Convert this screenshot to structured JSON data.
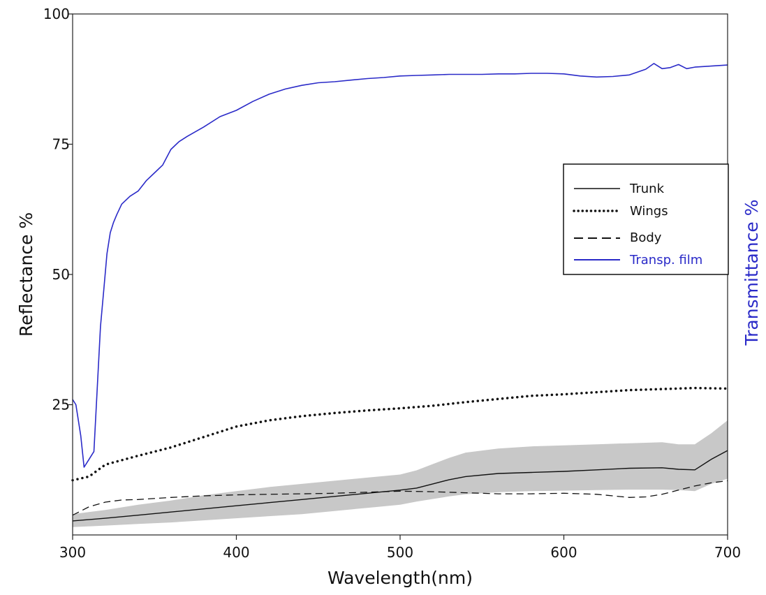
{
  "chart_data": {
    "type": "line",
    "xlabel": "Wavelength(nm)",
    "ylabel": "Reflectance %",
    "ylabel_right": "Transmittance %",
    "xlim": [
      300,
      700
    ],
    "ylim": [
      0,
      100
    ],
    "x_ticks": [
      "300",
      "400",
      "500",
      "600",
      "700"
    ],
    "y_ticks": [
      "25",
      "50",
      "75",
      "100"
    ],
    "grid": false,
    "legend_position": "right",
    "colors": {
      "black": "#111111",
      "transmittance": "#2a2ac8",
      "band": "#c8c8c8"
    },
    "series": [
      {
        "name": "Trunk",
        "style": "solid",
        "x": [
          300,
          320,
          340,
          360,
          380,
          400,
          420,
          440,
          460,
          480,
          500,
          510,
          520,
          530,
          540,
          560,
          580,
          600,
          620,
          640,
          660,
          670,
          680,
          690,
          700
        ],
        "values": [
          2.7,
          3.2,
          3.8,
          4.4,
          5.0,
          5.6,
          6.2,
          6.8,
          7.4,
          8.0,
          8.6,
          9.0,
          9.8,
          10.6,
          11.2,
          11.8,
          12.0,
          12.2,
          12.5,
          12.8,
          12.9,
          12.6,
          12.5,
          14.5,
          16.2
        ],
        "band_upper": [
          4.0,
          4.8,
          5.8,
          6.6,
          7.6,
          8.4,
          9.2,
          9.8,
          10.4,
          11.0,
          11.6,
          12.4,
          13.6,
          14.8,
          15.8,
          16.6,
          17.0,
          17.2,
          17.4,
          17.6,
          17.8,
          17.4,
          17.4,
          19.5,
          22.0
        ],
        "band_lower": [
          1.5,
          1.8,
          2.1,
          2.4,
          2.8,
          3.2,
          3.6,
          4.0,
          4.6,
          5.2,
          5.8,
          6.4,
          6.9,
          7.4,
          7.8,
          8.2,
          8.4,
          8.5,
          8.6,
          8.7,
          8.7,
          8.6,
          8.4,
          9.8,
          10.8
        ]
      },
      {
        "name": "Wings",
        "style": "dotted",
        "x": [
          300,
          310,
          320,
          340,
          360,
          380,
          400,
          420,
          440,
          460,
          480,
          500,
          520,
          540,
          560,
          580,
          600,
          620,
          640,
          660,
          680,
          700
        ],
        "values": [
          10.5,
          11.2,
          13.5,
          15.2,
          16.8,
          18.8,
          20.8,
          22.0,
          22.8,
          23.4,
          23.9,
          24.3,
          24.8,
          25.5,
          26.1,
          26.7,
          27.0,
          27.4,
          27.8,
          28.0,
          28.2,
          28.1
        ]
      },
      {
        "name": "Body",
        "style": "dashed",
        "x": [
          300,
          310,
          320,
          330,
          340,
          360,
          380,
          400,
          420,
          440,
          460,
          480,
          500,
          520,
          540,
          560,
          580,
          600,
          620,
          640,
          650,
          660,
          670,
          680,
          690,
          700
        ],
        "values": [
          3.8,
          5.4,
          6.3,
          6.7,
          6.8,
          7.2,
          7.5,
          7.7,
          7.8,
          7.9,
          8.0,
          8.2,
          8.4,
          8.3,
          8.1,
          7.9,
          7.9,
          8.0,
          7.8,
          7.2,
          7.3,
          7.8,
          8.6,
          9.4,
          10.0,
          10.4
        ]
      },
      {
        "name": "Transp. film",
        "style": "solid",
        "x": [
          300,
          302,
          305,
          307,
          309,
          311,
          313,
          315,
          317,
          319,
          321,
          323,
          325,
          327,
          330,
          335,
          340,
          345,
          350,
          355,
          360,
          365,
          370,
          380,
          390,
          400,
          410,
          420,
          430,
          440,
          450,
          460,
          470,
          480,
          490,
          500,
          510,
          520,
          530,
          540,
          550,
          560,
          570,
          580,
          590,
          600,
          610,
          620,
          630,
          640,
          650,
          655,
          660,
          665,
          670,
          675,
          680,
          690,
          700
        ],
        "values": [
          26,
          25,
          19,
          13,
          14,
          15,
          16,
          28,
          40,
          47,
          54,
          58,
          60,
          61.5,
          63.5,
          65,
          66,
          68,
          69.5,
          71,
          74,
          75.5,
          76.5,
          78.3,
          80.3,
          81.5,
          83.2,
          84.6,
          85.6,
          86.3,
          86.8,
          87.0,
          87.3,
          87.6,
          87.8,
          88.1,
          88.2,
          88.3,
          88.4,
          88.4,
          88.4,
          88.5,
          88.5,
          88.6,
          88.6,
          88.5,
          88.1,
          87.9,
          88.0,
          88.3,
          89.4,
          90.5,
          89.5,
          89.7,
          90.3,
          89.5,
          89.8,
          90.0,
          90.2
        ]
      }
    ]
  }
}
